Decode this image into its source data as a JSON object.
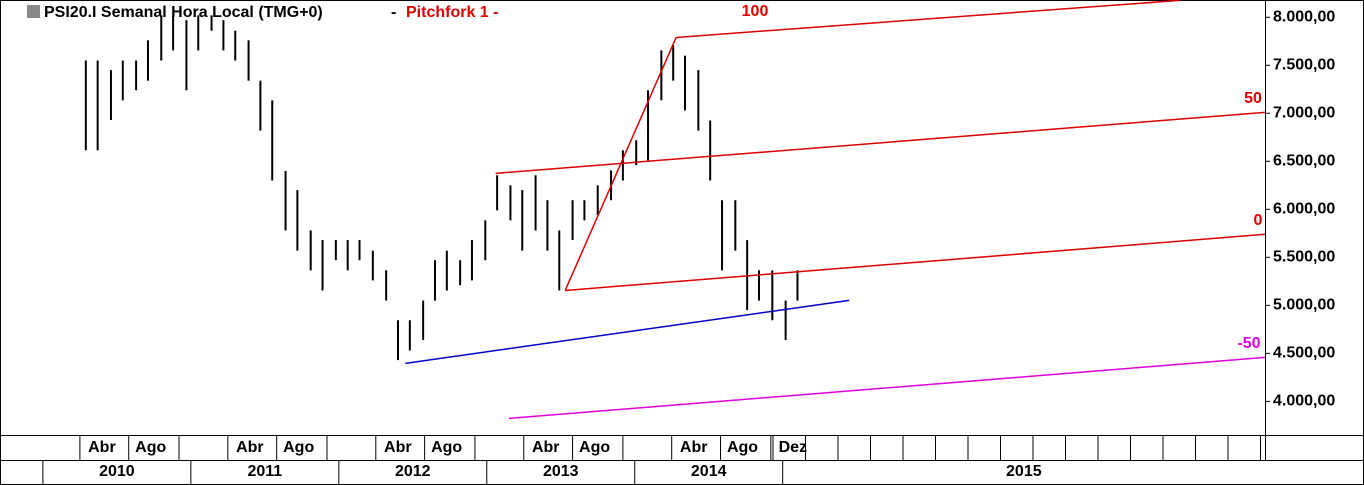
{
  "chart_data": {
    "type": "hilo",
    "title": "PSI20.I Semanal Hora Local (TMG+0)",
    "title_separator": "-",
    "study": "Pitchfork 1 -",
    "xlim": [
      2009.71,
      2018.26
    ],
    "ylim": [
      3650,
      8180
    ],
    "yticks": [
      {
        "value": 8000,
        "label": "8.000,00"
      },
      {
        "value": 7500,
        "label": "7.500,00"
      },
      {
        "value": 7000,
        "label": "7.000,00"
      },
      {
        "value": 6500,
        "label": "6.500,00"
      },
      {
        "value": 6000,
        "label": "6.000,00"
      },
      {
        "value": 5500,
        "label": "5.500,00"
      },
      {
        "value": 5000,
        "label": "5.000,00"
      },
      {
        "value": 4500,
        "label": "4.500,00"
      },
      {
        "value": 4000,
        "label": "4.000,00"
      }
    ],
    "xticks": [
      {
        "value": 2010.25,
        "label": "Abr"
      },
      {
        "value": 2010.58,
        "label": "Ago"
      },
      {
        "value": 2011.25,
        "label": "Abr"
      },
      {
        "value": 2011.58,
        "label": "Ago"
      },
      {
        "value": 2012.25,
        "label": "Abr"
      },
      {
        "value": 2012.58,
        "label": "Ago"
      },
      {
        "value": 2013.25,
        "label": "Abr"
      },
      {
        "value": 2013.58,
        "label": "Ago"
      },
      {
        "value": 2014.25,
        "label": "Abr"
      },
      {
        "value": 2014.58,
        "label": "Ago"
      },
      {
        "value": 2014.92,
        "label": "Dez"
      }
    ],
    "year_ticks": [
      2010,
      2011,
      2012,
      2013,
      2014,
      2015
    ],
    "series": [
      {
        "color": "#000000",
        "x": [
          2010.29,
          2010.37,
          2010.46,
          2010.54,
          2010.63,
          2010.71,
          2010.8,
          2010.88,
          2010.97,
          2011.05,
          2011.14,
          2011.22,
          2011.3,
          2011.39,
          2011.47,
          2011.55,
          2011.64,
          2011.72,
          2011.81,
          2011.89,
          2011.98,
          2012.06,
          2012.14,
          2012.23,
          2012.32,
          2012.4,
          2012.48,
          2012.57,
          2012.65,
          2012.73,
          2012.82,
          2012.9,
          2012.99,
          2013.07,
          2013.16,
          2013.24,
          2013.33,
          2013.41,
          2013.49,
          2013.58,
          2013.66,
          2013.75,
          2013.84,
          2013.92,
          2014.01,
          2014.09,
          2014.18,
          2014.26,
          2014.34,
          2014.43,
          2014.51,
          2014.59,
          2014.68,
          2014.76,
          2014.84,
          2014.93,
          2015.02,
          2015.1
        ],
        "high": [
          7550,
          7550,
          7450,
          7550,
          7550,
          7760,
          8020,
          8020,
          7970,
          8020,
          8020,
          7970,
          7860,
          7760,
          7340,
          7135,
          6400,
          6200,
          5780,
          5680,
          5680,
          5680,
          5680,
          5570,
          5365,
          4845,
          4845,
          5050,
          5470,
          5570,
          5470,
          5680,
          5885,
          6355,
          6250,
          6200,
          6355,
          6095,
          5780,
          6095,
          6095,
          6250,
          6405,
          6615,
          6720,
          7240,
          7655,
          7710,
          7600,
          7450,
          6925,
          6095,
          6095,
          5680,
          5365,
          5365,
          5050,
          5365
        ],
        "low": [
          6615,
          6615,
          6930,
          7135,
          7240,
          7340,
          7550,
          7655,
          7240,
          7655,
          7860,
          7655,
          7550,
          7340,
          6820,
          6300,
          5780,
          5570,
          5365,
          5155,
          5470,
          5365,
          5470,
          5260,
          5050,
          4430,
          4530,
          4640,
          5050,
          5155,
          5210,
          5260,
          5470,
          5990,
          5885,
          5570,
          5780,
          5570,
          5155,
          5680,
          5885,
          5940,
          6095,
          6300,
          6460,
          6510,
          7135,
          7340,
          7030,
          6820,
          6300,
          5365,
          5570,
          4950,
          5050,
          4845,
          4640,
          5050
        ]
      }
    ],
    "lines": [
      {
        "color": "#e00000",
        "x": [
          2013.53,
          2014.28
        ],
        "y": [
          5155,
          7790
        ]
      },
      {
        "label": "100",
        "color": "#e00000",
        "x": [
          2014.28,
          2017.69
        ],
        "y": [
          7790,
          8177
        ]
      },
      {
        "label": "50",
        "color": "#e00000",
        "x": [
          2013.06,
          2018.26
        ],
        "y": [
          6375,
          7010
        ]
      },
      {
        "label": "0",
        "color": "#e00000",
        "x": [
          2013.53,
          2018.26
        ],
        "y": [
          5155,
          5740
        ]
      },
      {
        "label": "-50",
        "color": "#e000e0",
        "x": [
          2013.15,
          2018.26
        ],
        "y": [
          3823,
          4458
        ]
      },
      {
        "color": "#0000cc",
        "x": [
          2012.45,
          2015.45
        ],
        "y": [
          4396,
          5052
        ]
      }
    ]
  }
}
